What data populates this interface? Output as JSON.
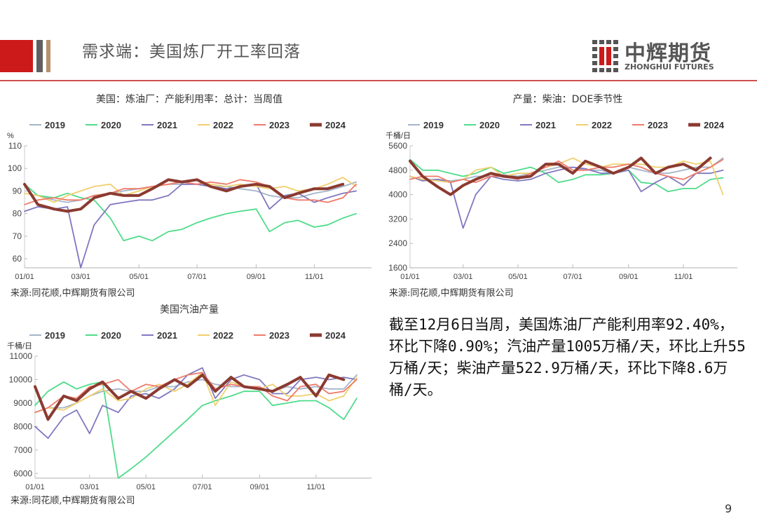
{
  "header": {
    "title": "需求端：美国炼厂开工率回落",
    "logo_cn": "中辉期货",
    "logo_en": "ZHONGHUI FUTURES"
  },
  "summary": "截至12月6日当周，美国炼油厂产能利用率92.40%，环比下降0.90%；汽油产量1005万桶/天，环比上升55万桶/天；柴油产量522.9万桶/天，环比下降8.6万桶/天。",
  "page_number": "9",
  "colors": {
    "2019": "#a3b5c9",
    "2020": "#4fdc8a",
    "2021": "#8078c0",
    "2022": "#f0cf6e",
    "2023": "#f07a6a",
    "2024": "#8b3a30",
    "brand_red": "#cc1a1a"
  },
  "chart_data": [
    {
      "type": "line",
      "title": "美国：炼油厂：产能利用率：总计：当周值",
      "ylabel": "%",
      "source": "来源:同花顺,中辉期货有限公司",
      "ylim": [
        56,
        110
      ],
      "yticks": [
        60,
        70,
        80,
        90,
        100,
        110
      ],
      "xticks": [
        "01/01",
        "03/01",
        "05/01",
        "07/01",
        "09/01",
        "11/01"
      ],
      "x": [
        "01/01",
        "01/15",
        "02/01",
        "02/15",
        "03/01",
        "03/15",
        "04/01",
        "04/15",
        "05/01",
        "05/15",
        "06/01",
        "06/15",
        "07/01",
        "07/15",
        "08/01",
        "08/15",
        "09/01",
        "09/15",
        "10/01",
        "10/15",
        "11/01",
        "11/15",
        "12/01",
        "12/15"
      ],
      "legend": "top",
      "series": [
        {
          "name": "2019",
          "values": [
            93,
            88,
            86,
            85,
            86,
            88,
            89,
            90,
            91,
            92,
            93,
            93,
            93,
            92,
            92,
            91,
            90,
            88,
            87,
            87,
            89,
            90,
            92,
            94
          ]
        },
        {
          "name": "2020",
          "values": [
            93,
            88,
            87,
            89,
            87,
            86,
            78,
            68,
            70,
            68,
            72,
            73,
            76,
            78,
            80,
            81,
            82,
            72,
            76,
            77,
            74,
            75,
            78,
            80
          ]
        },
        {
          "name": "2021",
          "values": [
            81,
            83,
            82,
            83,
            56,
            75,
            84,
            85,
            86,
            86,
            88,
            93,
            93,
            92,
            91,
            92,
            93,
            82,
            88,
            89,
            85,
            87,
            89,
            90
          ]
        },
        {
          "name": "2022",
          "values": [
            89,
            88,
            85,
            88,
            90,
            92,
            93,
            88,
            90,
            92,
            93,
            94,
            95,
            93,
            92,
            93,
            92,
            91,
            92,
            90,
            91,
            93,
            96,
            92
          ]
        },
        {
          "name": "2023",
          "values": [
            84,
            86,
            87,
            86,
            86,
            88,
            89,
            91,
            91,
            92,
            93,
            94,
            93,
            94,
            93,
            95,
            94,
            92,
            87,
            86,
            86,
            85,
            87,
            93
          ]
        },
        {
          "name": "2024",
          "values": [
            93,
            84,
            82,
            81,
            82,
            87,
            89,
            88,
            88,
            91,
            95,
            94,
            95,
            92,
            90,
            92,
            93,
            92,
            87,
            89,
            91,
            91,
            93,
            null
          ]
        }
      ]
    },
    {
      "type": "line",
      "title": "产量：柴油：DOE季节性",
      "ylabel": "千桶/日",
      "source": "来源:同花顺,中辉期货有限公司",
      "ylim": [
        1600,
        5600
      ],
      "yticks": [
        1600,
        2400,
        3200,
        4000,
        4800,
        5600
      ],
      "xticks": [
        "01/01",
        "03/01",
        "05/01",
        "07/01",
        "09/01",
        "11/01"
      ],
      "x": [
        "01/01",
        "01/15",
        "02/01",
        "02/15",
        "03/01",
        "03/15",
        "04/01",
        "04/15",
        "05/01",
        "05/15",
        "06/01",
        "06/15",
        "07/01",
        "07/15",
        "08/01",
        "08/15",
        "09/01",
        "09/15",
        "10/01",
        "10/15",
        "11/01",
        "11/15",
        "12/01",
        "12/15"
      ],
      "legend": "top",
      "series": [
        {
          "name": "2019",
          "values": [
            4600,
            4500,
            4500,
            4450,
            4500,
            4600,
            4600,
            4650,
            4600,
            4700,
            4800,
            4900,
            4900,
            4800,
            4800,
            4700,
            4900,
            4800,
            4700,
            4700,
            4800,
            4900,
            4900,
            5200
          ]
        },
        {
          "name": "2020",
          "values": [
            5150,
            4800,
            4800,
            4700,
            4600,
            4700,
            4900,
            4700,
            4800,
            4900,
            4700,
            4400,
            4500,
            4650,
            4650,
            4700,
            4800,
            4400,
            4350,
            4100,
            4200,
            4200,
            4500,
            4550
          ]
        },
        {
          "name": "2021",
          "values": [
            4600,
            4450,
            4500,
            4400,
            2900,
            4000,
            4600,
            4500,
            4450,
            4500,
            4700,
            4800,
            4900,
            4850,
            4700,
            4700,
            4800,
            4100,
            4400,
            4600,
            4300,
            4700,
            4700,
            4800
          ]
        },
        {
          "name": "2022",
          "values": [
            4600,
            4500,
            4450,
            4400,
            4500,
            4800,
            4900,
            4600,
            4700,
            4700,
            4900,
            5000,
            5200,
            5000,
            4900,
            5000,
            5000,
            5000,
            4900,
            4900,
            5100,
            5000,
            5100,
            4000
          ]
        },
        {
          "name": "2023",
          "values": [
            4500,
            4600,
            4600,
            4400,
            4500,
            4400,
            4600,
            4600,
            4500,
            4700,
            4900,
            5100,
            4800,
            4800,
            4900,
            4900,
            5000,
            4900,
            4700,
            4600,
            4500,
            4700,
            4900,
            5150
          ]
        },
        {
          "name": "2024",
          "values": [
            5100,
            4600,
            4250,
            4000,
            4300,
            4500,
            4700,
            4600,
            4550,
            4600,
            5000,
            5000,
            4700,
            5100,
            4900,
            4700,
            4900,
            5200,
            4700,
            4900,
            5000,
            4800,
            5200,
            null
          ]
        }
      ]
    },
    {
      "type": "line",
      "title": "美国汽油产量",
      "ylabel": "千桶/日",
      "source": "来源:同花顺,中辉期货有限公司",
      "ylim": [
        5800,
        11000
      ],
      "yticks": [
        6000,
        7000,
        8000,
        9000,
        10000,
        11000
      ],
      "xticks": [
        "01/01",
        "03/01",
        "05/01",
        "07/01",
        "09/01",
        "11/01"
      ],
      "x": [
        "01/01",
        "01/15",
        "02/01",
        "02/15",
        "03/01",
        "03/15",
        "04/01",
        "04/15",
        "05/01",
        "05/15",
        "06/01",
        "06/15",
        "07/01",
        "07/15",
        "08/01",
        "08/15",
        "09/01",
        "09/15",
        "10/01",
        "10/15",
        "11/01",
        "11/15",
        "12/01",
        "12/15"
      ],
      "legend": "top",
      "series": [
        {
          "name": "2019",
          "values": [
            8600,
            8800,
            8800,
            9000,
            9300,
            9500,
            9600,
            9500,
            9500,
            9700,
            9700,
            9900,
            10000,
            9800,
            9700,
            9700,
            9600,
            9500,
            9700,
            9600,
            9700,
            9600,
            9600,
            10200
          ]
        },
        {
          "name": "2020",
          "values": [
            8900,
            9500,
            9900,
            9600,
            9800,
            9900,
            5800,
            6200,
            6700,
            7200,
            7800,
            8300,
            8900,
            9100,
            9300,
            9500,
            9500,
            8900,
            9000,
            9100,
            9100,
            8800,
            8300,
            9200
          ]
        },
        {
          "name": "2021",
          "values": [
            8000,
            7500,
            8400,
            8700,
            7700,
            8900,
            8600,
            9300,
            9400,
            9200,
            9600,
            10200,
            10500,
            9200,
            10000,
            10200,
            10000,
            9400,
            9400,
            10000,
            10100,
            10000,
            10100,
            10000
          ]
        },
        {
          "name": "2022",
          "values": [
            8600,
            8800,
            8700,
            9000,
            9300,
            9600,
            9100,
            9200,
            9600,
            9800,
            9500,
            9800,
            10300,
            8900,
            9900,
            9700,
            9600,
            9800,
            9300,
            9300,
            9400,
            9100,
            9300,
            10100
          ]
        },
        {
          "name": "2023",
          "values": [
            8600,
            8800,
            9300,
            9200,
            9700,
            9800,
            10000,
            9500,
            9800,
            9700,
            10000,
            10200,
            10300,
            9600,
            9800,
            9700,
            9700,
            9300,
            9100,
            9700,
            9800,
            9400,
            9500,
            10000
          ]
        },
        {
          "name": "2024",
          "values": [
            9700,
            8300,
            9300,
            9100,
            9600,
            9900,
            9200,
            9500,
            9200,
            9600,
            10000,
            9700,
            10200,
            9500,
            10100,
            9700,
            9600,
            9500,
            9800,
            10100,
            9300,
            10200,
            10000,
            null
          ]
        }
      ]
    }
  ]
}
